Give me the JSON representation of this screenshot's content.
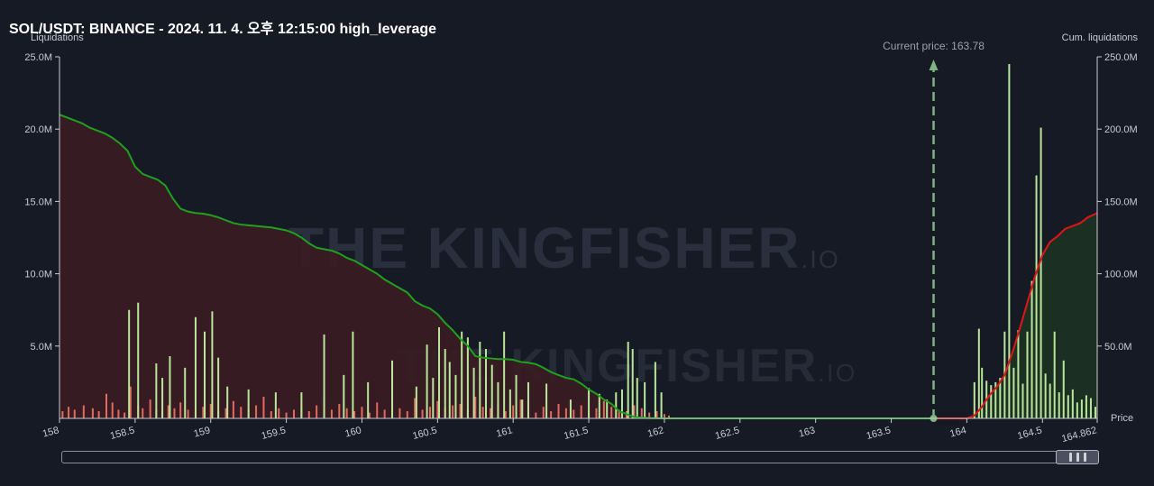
{
  "header": {
    "title": "SOL/USDT: BINANCE - 2024. 11. 4. 오후 12:15:00 high_leverage"
  },
  "watermark": {
    "brand": "THE KINGFISHER",
    "suffix": ".IO"
  },
  "colors": {
    "background": "#161a25",
    "short_bars": "#e06b5e",
    "long_bars": "#b9e69a",
    "short_cum_line": "#1fa01f",
    "long_cum_line": "#e01616",
    "current_price_line": "#7fb37f",
    "short_area": "#3a1c22",
    "long_area": "#1c3324"
  },
  "chart_data": {
    "type": "bar",
    "title": "SOL/USDT: BINANCE - 2024. 11. 4. 오후 12:15:00 high_leverage",
    "ylabel": "Liquidations",
    "y2label": "Cum. liquidations",
    "xlabel": "Price",
    "ylim": [
      0,
      25000000
    ],
    "y2lim": [
      0,
      250000000
    ],
    "xlim": [
      158,
      164.862
    ],
    "y_ticks": [
      "25.0M",
      "20.0M",
      "15.0M",
      "10.0M",
      "5.0M"
    ],
    "y2_ticks": [
      "250.0M",
      "200.0M",
      "150.0M",
      "100.0M",
      "50.0M"
    ],
    "x_ticks": [
      "158",
      "158.5",
      "159",
      "159.5",
      "160",
      "160.5",
      "161",
      "161.5",
      "162",
      "162.5",
      "163",
      "163.5",
      "164",
      "164.5",
      "164.862"
    ],
    "current_price": {
      "label": "Current price: 163.78",
      "value": 163.78
    },
    "grid": false,
    "short_liquidations": {
      "x": [
        158.02,
        158.06,
        158.1,
        158.16,
        158.22,
        158.26,
        158.31,
        158.35,
        158.39,
        158.43,
        158.47,
        158.52,
        158.55,
        158.6,
        158.64,
        158.68,
        158.72,
        158.76,
        158.8,
        158.85,
        158.9,
        158.95,
        159.0,
        159.05,
        159.1,
        159.15,
        159.2,
        159.25,
        159.3,
        159.35,
        159.4,
        159.45,
        159.5,
        159.55,
        159.6,
        159.65,
        159.7,
        159.75,
        159.8,
        159.85,
        159.9,
        159.95,
        160.0,
        160.05,
        160.1,
        160.15,
        160.2,
        160.25,
        160.3,
        160.35,
        160.4,
        160.45,
        160.5,
        160.55,
        160.6,
        160.65,
        160.7,
        160.75,
        160.8,
        160.85,
        160.9,
        160.95,
        161.0,
        161.05,
        161.1,
        161.15,
        161.2,
        161.25,
        161.3,
        161.35,
        161.4,
        161.45,
        161.5,
        161.55,
        161.6,
        161.65,
        161.7,
        161.75,
        161.8,
        161.85,
        161.9,
        161.95,
        162.0,
        162.03
      ],
      "values": [
        500000,
        800000,
        600000,
        900000,
        700000,
        500000,
        1700000,
        1100000,
        600000,
        400000,
        2200000,
        900000,
        700000,
        1300000,
        600000,
        500000,
        900000,
        700000,
        1100000,
        600000,
        400000,
        800000,
        1000000,
        500000,
        700000,
        1200000,
        800000,
        600000,
        900000,
        1500000,
        500000,
        700000,
        400000,
        600000,
        800000,
        500000,
        900000,
        1300000,
        600000,
        1000000,
        700000,
        500000,
        800000,
        400000,
        1100000,
        600000,
        900000,
        700000,
        500000,
        1400000,
        600000,
        800000,
        1200000,
        700000,
        900000,
        1000000,
        600000,
        1500000,
        800000,
        700000,
        1100000,
        500000,
        900000,
        1300000,
        600000,
        400000,
        800000,
        500000,
        1000000,
        700000,
        600000,
        900000,
        500000,
        700000,
        1200000,
        800000,
        600000,
        500000,
        900000,
        700000,
        400000,
        500000,
        300000,
        200000
      ]
    },
    "long_liquidations": {
      "x": [
        158.46,
        158.52,
        158.64,
        158.68,
        158.73,
        158.83,
        158.9,
        158.96,
        159.01,
        159.05,
        159.11,
        159.25,
        159.43,
        159.6,
        159.75,
        159.88,
        159.94,
        160.04,
        160.2,
        160.36,
        160.43,
        160.47,
        160.51,
        160.55,
        160.58,
        160.62,
        160.66,
        160.7,
        160.74,
        160.78,
        160.82,
        160.86,
        160.9,
        160.94,
        160.98,
        161.02,
        161.06,
        161.1,
        161.22,
        161.38,
        161.5,
        161.57,
        161.62,
        161.68,
        161.72,
        161.76,
        161.79,
        161.82,
        161.87,
        161.94,
        161.98,
        164.05,
        164.08,
        164.1,
        164.13,
        164.16,
        164.19,
        164.22,
        164.25,
        164.28,
        164.31,
        164.34,
        164.37,
        164.4,
        164.43,
        164.46,
        164.49,
        164.52,
        164.55,
        164.58,
        164.61,
        164.64,
        164.67,
        164.7,
        164.73,
        164.76,
        164.79,
        164.82,
        164.85
      ],
      "values": [
        7500000,
        8000000,
        3800000,
        2800000,
        4300000,
        3500000,
        7000000,
        6000000,
        7400000,
        4200000,
        2200000,
        2000000,
        1800000,
        1800000,
        5800000,
        3000000,
        6000000,
        2500000,
        4000000,
        2200000,
        5100000,
        2800000,
        6300000,
        4800000,
        3900000,
        3000000,
        6000000,
        5600000,
        3500000,
        5300000,
        4800000,
        3700000,
        2500000,
        6000000,
        2000000,
        3000000,
        1300000,
        2500000,
        2400000,
        1300000,
        2100000,
        1700000,
        1300000,
        1800000,
        2000000,
        5300000,
        4800000,
        2800000,
        2500000,
        3900000,
        1800000,
        2500000,
        6200000,
        3500000,
        2600000,
        2300000,
        2500000,
        2800000,
        6000000,
        24500000,
        3500000,
        6100000,
        2400000,
        6000000,
        9500000,
        16800000,
        20100000,
        3100000,
        2400000,
        6000000,
        1800000,
        4000000,
        1600000,
        2000000,
        1100000,
        1300000,
        1600000,
        1400000,
        800000
      ]
    },
    "short_cumulative": {
      "x": [
        158.0,
        158.05,
        158.1,
        158.15,
        158.2,
        158.25,
        158.3,
        158.35,
        158.4,
        158.45,
        158.5,
        158.55,
        158.6,
        158.65,
        158.7,
        158.75,
        158.8,
        158.85,
        158.9,
        158.95,
        159.0,
        159.05,
        159.1,
        159.15,
        159.2,
        159.25,
        159.3,
        159.35,
        159.4,
        159.45,
        159.5,
        159.55,
        159.6,
        159.65,
        159.7,
        159.75,
        159.8,
        159.85,
        159.9,
        159.95,
        160.0,
        160.05,
        160.1,
        160.15,
        160.2,
        160.25,
        160.3,
        160.35,
        160.4,
        160.45,
        160.5,
        160.55,
        160.6,
        160.65,
        160.7,
        160.75,
        160.8,
        160.85,
        160.9,
        160.95,
        161.0,
        161.05,
        161.1,
        161.15,
        161.2,
        161.25,
        161.3,
        161.35,
        161.4,
        161.45,
        161.5,
        161.55,
        161.6,
        161.65,
        161.7,
        161.75,
        161.8,
        161.85,
        161.9,
        161.95,
        162.0,
        162.05,
        162.5,
        163.0,
        163.5,
        163.78
      ],
      "values": [
        210000000,
        208000000,
        206000000,
        204000000,
        201000000,
        199000000,
        197000000,
        194000000,
        190000000,
        185000000,
        174000000,
        169000000,
        167000000,
        165000000,
        161000000,
        152000000,
        145000000,
        143000000,
        142000000,
        141500000,
        140500000,
        139000000,
        137000000,
        135000000,
        134000000,
        133500000,
        133000000,
        132500000,
        132000000,
        131000000,
        130000000,
        128000000,
        125000000,
        121000000,
        118000000,
        117000000,
        116000000,
        114000000,
        111000000,
        109000000,
        106000000,
        103000000,
        100000000,
        96000000,
        93000000,
        90000000,
        87000000,
        81000000,
        78000000,
        76000000,
        72000000,
        66000000,
        61000000,
        55000000,
        50000000,
        43000000,
        42000000,
        41500000,
        41000000,
        41000000,
        40500000,
        39000000,
        38500000,
        37500000,
        35000000,
        32000000,
        30000000,
        28000000,
        27000000,
        24000000,
        20000000,
        17000000,
        13000000,
        10000000,
        5000000,
        3000000,
        1000000,
        500000,
        200000,
        100000,
        0,
        0,
        0,
        0,
        0,
        0
      ]
    },
    "long_cumulative": {
      "x": [
        163.78,
        164.0,
        164.05,
        164.1,
        164.15,
        164.2,
        164.25,
        164.3,
        164.35,
        164.4,
        164.45,
        164.5,
        164.55,
        164.6,
        164.65,
        164.7,
        164.75,
        164.8,
        164.862
      ],
      "values": [
        0,
        0,
        2000000,
        8000000,
        16000000,
        22000000,
        30000000,
        45000000,
        62000000,
        80000000,
        98000000,
        113000000,
        122000000,
        126000000,
        131000000,
        133000000,
        135000000,
        139000000,
        142000000
      ]
    }
  }
}
